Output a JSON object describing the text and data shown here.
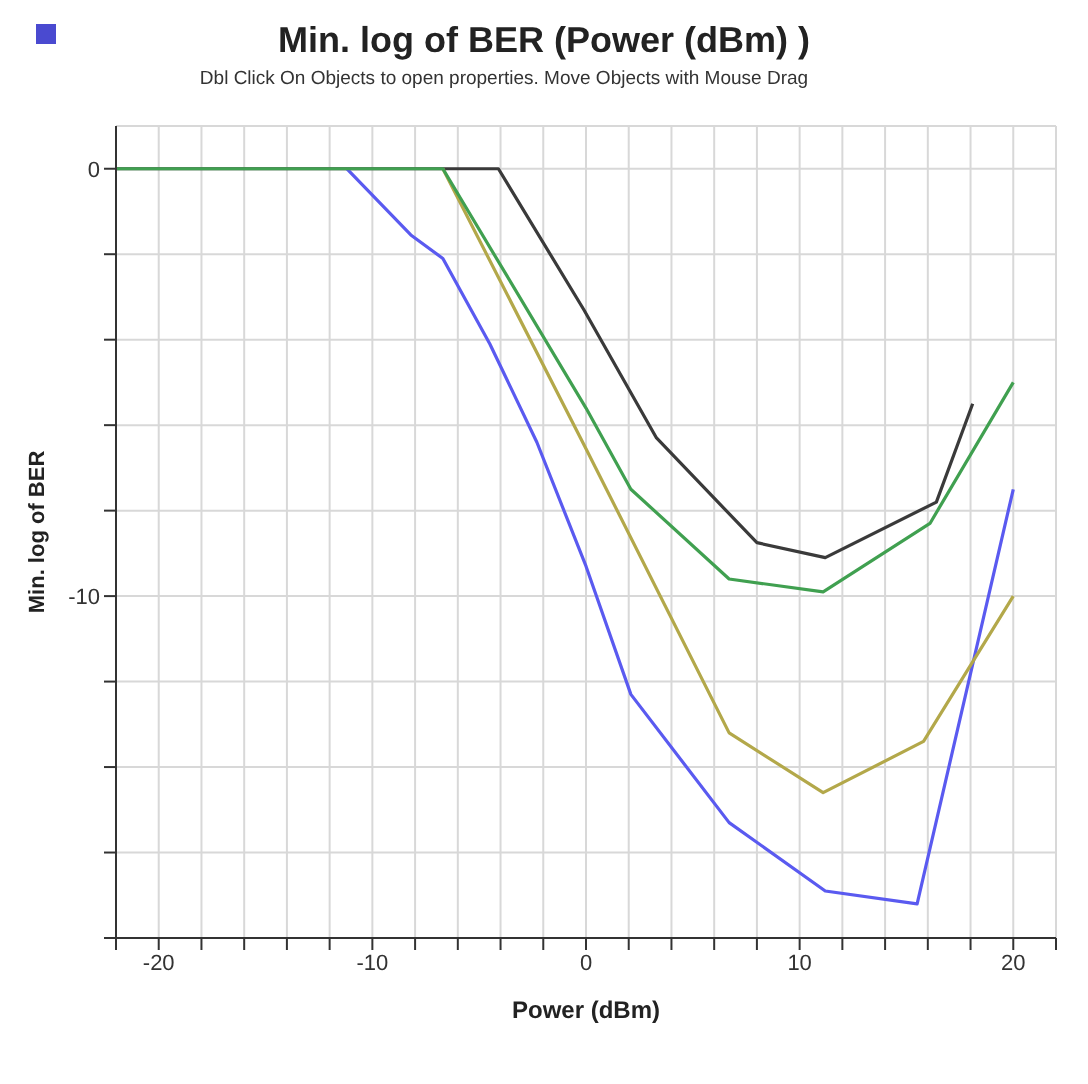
{
  "chart_data": {
    "type": "line",
    "title": "Min. log of BER (Power (dBm) )",
    "subtitle": "Dbl Click On Objects to open properties.  Move Objects with Mouse Drag",
    "xlabel": "Power (dBm)",
    "ylabel": "Min. log of BER",
    "xlim": [
      -22,
      22
    ],
    "ylim": [
      -18,
      1
    ],
    "xticks": [
      {
        "value": -22,
        "label": null
      },
      -20,
      {
        "value": -18,
        "label": null
      },
      {
        "value": -16,
        "label": null
      },
      {
        "value": -14,
        "label": null
      },
      {
        "value": -12,
        "label": null
      },
      -10,
      {
        "value": -8,
        "label": null
      },
      {
        "value": -6,
        "label": null
      },
      {
        "value": -4,
        "label": null
      },
      {
        "value": -2,
        "label": null
      },
      0,
      {
        "value": 2,
        "label": null
      },
      {
        "value": 4,
        "label": null
      },
      {
        "value": 6,
        "label": null
      },
      {
        "value": 8,
        "label": null
      },
      10,
      {
        "value": 12,
        "label": null
      },
      {
        "value": 14,
        "label": null
      },
      {
        "value": 16,
        "label": null
      },
      {
        "value": 18,
        "label": null
      },
      20,
      {
        "value": 22,
        "label": null
      }
    ],
    "yticks": [
      0,
      {
        "value": -2,
        "label": null
      },
      {
        "value": -4,
        "label": null
      },
      {
        "value": -6,
        "label": null
      },
      {
        "value": -8,
        "label": null
      },
      -10,
      {
        "value": -12,
        "label": null
      },
      {
        "value": -14,
        "label": null
      },
      {
        "value": -16,
        "label": null
      },
      {
        "value": -18,
        "label": null
      }
    ],
    "grid": true,
    "marker": "none",
    "line_style": "solid",
    "series": [
      {
        "color": "#3a3a3a",
        "x": [
          -22,
          -4.1,
          -0.1,
          3.3,
          8.0,
          11.2,
          16.4,
          18.1
        ],
        "values": [
          0,
          0,
          -3.3,
          -6.3,
          -8.75,
          -9.1,
          -7.8,
          -5.5
        ]
      },
      {
        "color": "#5a5af0",
        "x": [
          -11.2,
          -8.2,
          -6.7,
          -4.5,
          -2.3,
          0,
          2.1,
          6.7,
          11.2,
          15.5,
          20
        ],
        "values": [
          0,
          -1.55,
          -2.1,
          -4.1,
          -6.4,
          -9.3,
          -12.3,
          -15.3,
          -16.9,
          -17.2,
          -7.5
        ]
      },
      {
        "color": "#b3a84a",
        "x": [
          -6.7,
          0,
          6.7,
          11.1,
          15.8,
          20
        ],
        "values": [
          0,
          -6.55,
          -13.2,
          -14.6,
          -13.4,
          -10.0
        ]
      },
      {
        "color": "#40a050",
        "x": [
          -22,
          -6.7,
          0,
          2.1,
          6.7,
          11.1,
          16.1,
          20
        ],
        "values": [
          0,
          0,
          -5.6,
          -7.5,
          -9.6,
          -9.9,
          -8.3,
          -5.0
        ]
      }
    ]
  }
}
